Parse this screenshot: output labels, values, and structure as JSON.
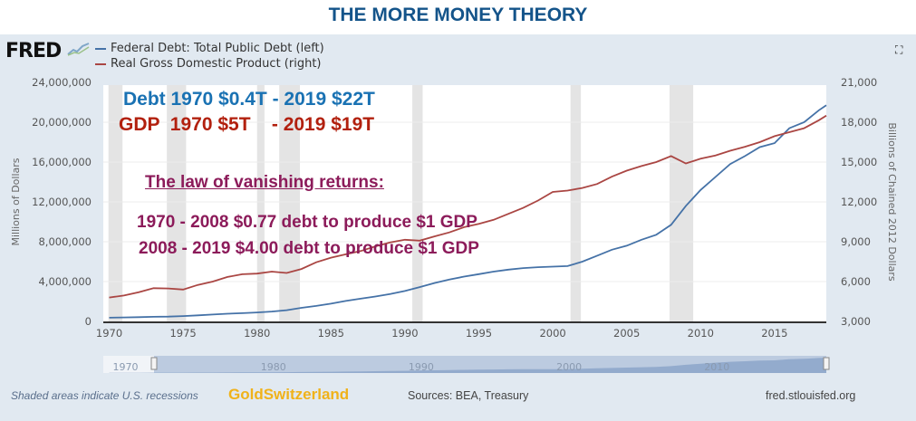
{
  "header": {
    "title": "THE MORE MONEY THEORY",
    "logo": "FRED",
    "expand_icon": "fullscreen-icon"
  },
  "chart_data": {
    "type": "line",
    "legend": [
      "Federal Debt: Total Public Debt (left)",
      "Real Gross Domestic Product (right)"
    ],
    "legend_placement": "top-left",
    "ylabel_left": "Millions of Dollars",
    "ylabel_right": "Billions of Chained 2012 Dollars",
    "xlim": [
      1969.6,
      2018.5
    ],
    "ylim_left": [
      0,
      24000000
    ],
    "ylim_right": [
      3000,
      21000
    ],
    "x_ticks": [
      "1970",
      "1975",
      "1980",
      "1985",
      "1990",
      "1995",
      "2000",
      "2005",
      "2010",
      "2015"
    ],
    "y_ticks_left": [
      "0",
      "4,000,000",
      "8,000,000",
      "12,000,000",
      "16,000,000",
      "20,000,000",
      "24,000,000"
    ],
    "y_ticks_right": [
      "3,000",
      "6,000",
      "9,000",
      "12,000",
      "15,000",
      "18,000",
      "21,000"
    ],
    "grid": true,
    "recessions": [
      [
        1969.95,
        1970.9
      ],
      [
        1973.9,
        1975.2
      ],
      [
        1980.0,
        1980.5
      ],
      [
        1981.5,
        1982.9
      ],
      [
        1990.5,
        1991.2
      ],
      [
        2001.2,
        2001.9
      ],
      [
        2007.9,
        2009.5
      ]
    ],
    "x": [
      1970,
      1971,
      1972,
      1973,
      1974,
      1975,
      1976,
      1977,
      1978,
      1979,
      1980,
      1981,
      1982,
      1983,
      1984,
      1985,
      1986,
      1987,
      1988,
      1989,
      1990,
      1991,
      1992,
      1993,
      1994,
      1995,
      1996,
      1997,
      1998,
      1999,
      2000,
      2001,
      2002,
      2003,
      2004,
      2005,
      2006,
      2007,
      2008,
      2009,
      2010,
      2011,
      2012,
      2013,
      2014,
      2015,
      2016,
      2017,
      2018,
      2018.5
    ],
    "series": [
      {
        "name": "Federal Debt: Total Public Debt (left)",
        "axis": "left",
        "color": "#4572a7",
        "values": [
          370000,
          400000,
          430000,
          460000,
          480000,
          540000,
          610000,
          690000,
          770000,
          830000,
          900000,
          990000,
          1130000,
          1360000,
          1550000,
          1780000,
          2050000,
          2280000,
          2500000,
          2750000,
          3050000,
          3450000,
          3850000,
          4200000,
          4500000,
          4750000,
          5000000,
          5200000,
          5350000,
          5450000,
          5500000,
          5550000,
          6000000,
          6600000,
          7200000,
          7600000,
          8200000,
          8700000,
          9700000,
          11600000,
          13200000,
          14500000,
          15800000,
          16600000,
          17500000,
          17900000,
          19400000,
          20000000,
          21200000,
          21700000
        ]
      },
      {
        "name": "Real Gross Domestic Product (right)",
        "axis": "right",
        "color": "#aa4643",
        "values": [
          4800,
          4950,
          5200,
          5500,
          5480,
          5400,
          5750,
          6000,
          6350,
          6550,
          6600,
          6750,
          6650,
          6950,
          7450,
          7800,
          8050,
          8300,
          8650,
          8950,
          9150,
          9080,
          9400,
          9700,
          10100,
          10350,
          10650,
          11100,
          11550,
          12100,
          12750,
          12850,
          13050,
          13350,
          13900,
          14350,
          14700,
          15000,
          15450,
          14900,
          15250,
          15500,
          15850,
          16150,
          16500,
          16950,
          17250,
          17550,
          18150,
          18500
        ]
      }
    ],
    "annotations": {
      "debt": "Debt 1970 $0.4T - 2019 $22T",
      "gdp": "GDP  1970 $5T    - 2019 $19T",
      "heading": "The law of vanishing returns:",
      "line1": "1970 - 2008 $0.77 debt to produce $1 GDP",
      "line2": "2008 - 2019 $4.00 debt to produce $1 GDP",
      "colors": {
        "debt": "#1a72b3",
        "gdp": "#b2200e",
        "law": "#8c1b5a"
      }
    },
    "navigator_ticks": [
      "1970",
      "1980",
      "1990",
      "2000",
      "2010"
    ]
  },
  "footer": {
    "recession_note": "Shaded areas indicate U.S. recessions",
    "brand": "GoldSwitzerland",
    "sources": "Sources: BEA, Treasury",
    "site": "fred.stlouisfed.org"
  }
}
